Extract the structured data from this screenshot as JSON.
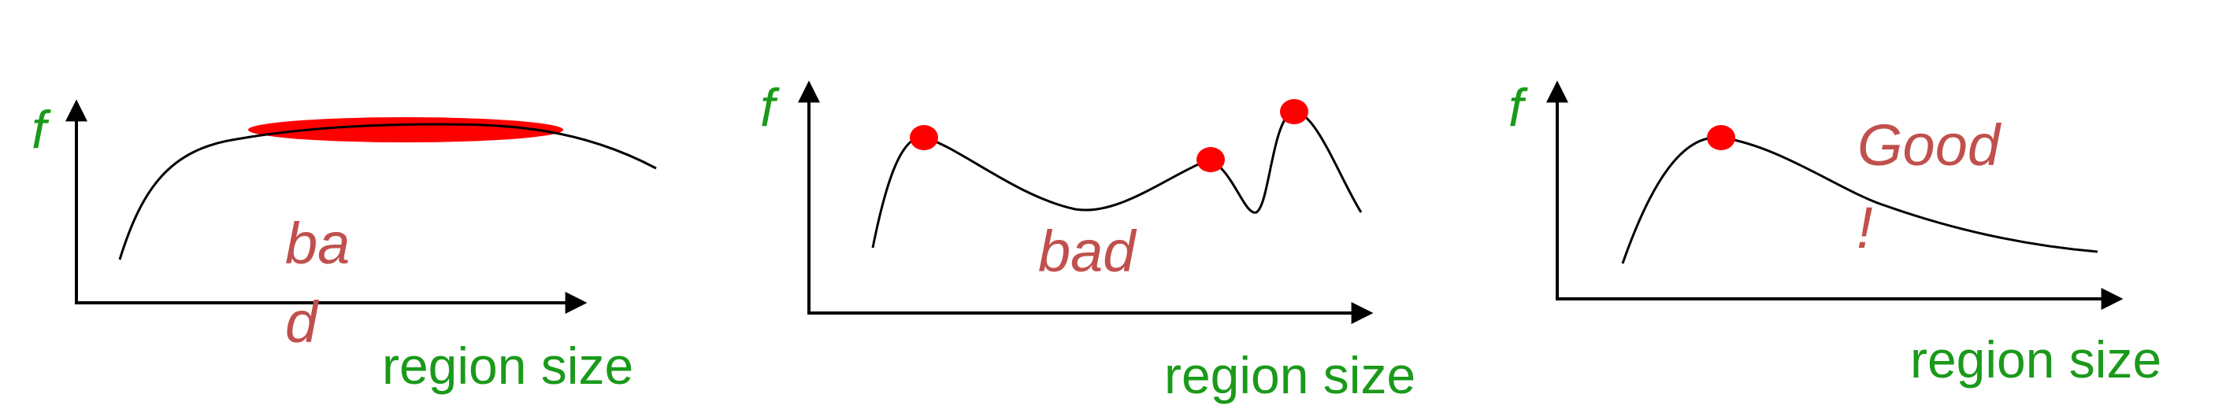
{
  "colors": {
    "label_green": "#1a9a1a",
    "verdict_red": "#c0504d",
    "marker_red": "#ff0000",
    "curve": "#000000"
  },
  "panels": [
    {
      "y_label": "f",
      "x_label": "region size",
      "verdict_lines": [
        "ba",
        "d"
      ]
    },
    {
      "y_label": "f",
      "x_label": "region size",
      "verdict_lines": [
        "bad"
      ]
    },
    {
      "y_label": "f",
      "x_label": "region size",
      "verdict_lines": [
        "Good",
        "!"
      ]
    }
  ]
}
